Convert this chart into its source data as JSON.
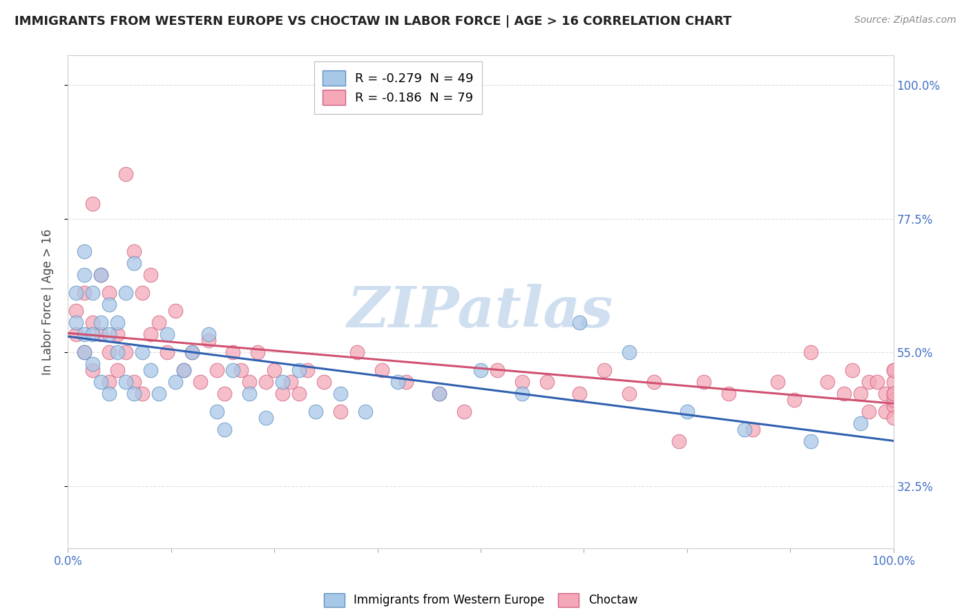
{
  "title": "IMMIGRANTS FROM WESTERN EUROPE VS CHOCTAW IN LABOR FORCE | AGE > 16 CORRELATION CHART",
  "source": "Source: ZipAtlas.com",
  "ylabel": "In Labor Force | Age > 16",
  "xlim": [
    0.0,
    1.0
  ],
  "ylim": [
    0.22,
    1.05
  ],
  "yticks": [
    0.325,
    0.55,
    0.775,
    1.0
  ],
  "ytick_labels": [
    "32.5%",
    "55.0%",
    "77.5%",
    "100.0%"
  ],
  "xticks": [
    0.0,
    0.125,
    0.25,
    0.375,
    0.5,
    0.625,
    0.75,
    0.875,
    1.0
  ],
  "xtick_labels": [
    "0.0%",
    "",
    "",
    "",
    "",
    "",
    "",
    "",
    "100.0%"
  ],
  "series1_color": "#a8c8e8",
  "series2_color": "#f4a8b8",
  "series1_edge": "#6090c0",
  "series2_edge": "#d06080",
  "line1_color": "#3060b0",
  "line2_color": "#d05070",
  "watermark": "ZIPatlas",
  "watermark_color": "#d0dff0",
  "background_color": "#ffffff",
  "grid_color": "#dddddd",
  "title_color": "#222222",
  "axis_label_color": "#444444",
  "tick_color": "#4472c4",
  "blue_x": [
    0.01,
    0.01,
    0.02,
    0.02,
    0.02,
    0.02,
    0.03,
    0.03,
    0.03,
    0.04,
    0.04,
    0.04,
    0.05,
    0.05,
    0.05,
    0.06,
    0.06,
    0.07,
    0.07,
    0.08,
    0.08,
    0.09,
    0.1,
    0.11,
    0.12,
    0.13,
    0.14,
    0.15,
    0.17,
    0.18,
    0.19,
    0.2,
    0.22,
    0.24,
    0.26,
    0.28,
    0.3,
    0.33,
    0.36,
    0.4,
    0.45,
    0.5,
    0.55,
    0.62,
    0.68,
    0.75,
    0.82,
    0.9,
    0.96
  ],
  "blue_y": [
    0.6,
    0.65,
    0.68,
    0.58,
    0.72,
    0.55,
    0.65,
    0.58,
    0.53,
    0.6,
    0.68,
    0.5,
    0.58,
    0.63,
    0.48,
    0.55,
    0.6,
    0.65,
    0.5,
    0.7,
    0.48,
    0.55,
    0.52,
    0.48,
    0.58,
    0.5,
    0.52,
    0.55,
    0.58,
    0.45,
    0.42,
    0.52,
    0.48,
    0.44,
    0.5,
    0.52,
    0.45,
    0.48,
    0.45,
    0.5,
    0.48,
    0.52,
    0.48,
    0.6,
    0.55,
    0.45,
    0.42,
    0.4,
    0.43
  ],
  "pink_x": [
    0.01,
    0.01,
    0.02,
    0.02,
    0.03,
    0.03,
    0.03,
    0.04,
    0.04,
    0.05,
    0.05,
    0.05,
    0.06,
    0.06,
    0.07,
    0.07,
    0.08,
    0.08,
    0.09,
    0.09,
    0.1,
    0.1,
    0.11,
    0.12,
    0.13,
    0.14,
    0.15,
    0.16,
    0.17,
    0.18,
    0.19,
    0.2,
    0.21,
    0.22,
    0.23,
    0.24,
    0.25,
    0.26,
    0.27,
    0.28,
    0.29,
    0.31,
    0.33,
    0.35,
    0.38,
    0.41,
    0.45,
    0.48,
    0.52,
    0.55,
    0.58,
    0.62,
    0.65,
    0.68,
    0.71,
    0.74,
    0.77,
    0.8,
    0.83,
    0.86,
    0.88,
    0.9,
    0.92,
    0.94,
    0.95,
    0.96,
    0.97,
    0.97,
    0.98,
    0.99,
    0.99,
    1.0,
    1.0,
    1.0,
    1.0,
    1.0,
    1.0,
    1.0,
    1.0
  ],
  "pink_y": [
    0.62,
    0.58,
    0.65,
    0.55,
    0.8,
    0.6,
    0.52,
    0.58,
    0.68,
    0.65,
    0.55,
    0.5,
    0.58,
    0.52,
    0.85,
    0.55,
    0.72,
    0.5,
    0.65,
    0.48,
    0.58,
    0.68,
    0.6,
    0.55,
    0.62,
    0.52,
    0.55,
    0.5,
    0.57,
    0.52,
    0.48,
    0.55,
    0.52,
    0.5,
    0.55,
    0.5,
    0.52,
    0.48,
    0.5,
    0.48,
    0.52,
    0.5,
    0.45,
    0.55,
    0.52,
    0.5,
    0.48,
    0.45,
    0.52,
    0.5,
    0.5,
    0.48,
    0.52,
    0.48,
    0.5,
    0.4,
    0.5,
    0.48,
    0.42,
    0.5,
    0.47,
    0.55,
    0.5,
    0.48,
    0.52,
    0.48,
    0.5,
    0.45,
    0.5,
    0.48,
    0.45,
    0.52,
    0.48,
    0.46,
    0.5,
    0.47,
    0.44,
    0.48,
    0.52
  ],
  "legend1_label": "R = -0.279  N = 49",
  "legend2_label": "R = -0.186  N = 79",
  "bottom_legend1": "Immigrants from Western Europe",
  "bottom_legend2": "Choctaw"
}
